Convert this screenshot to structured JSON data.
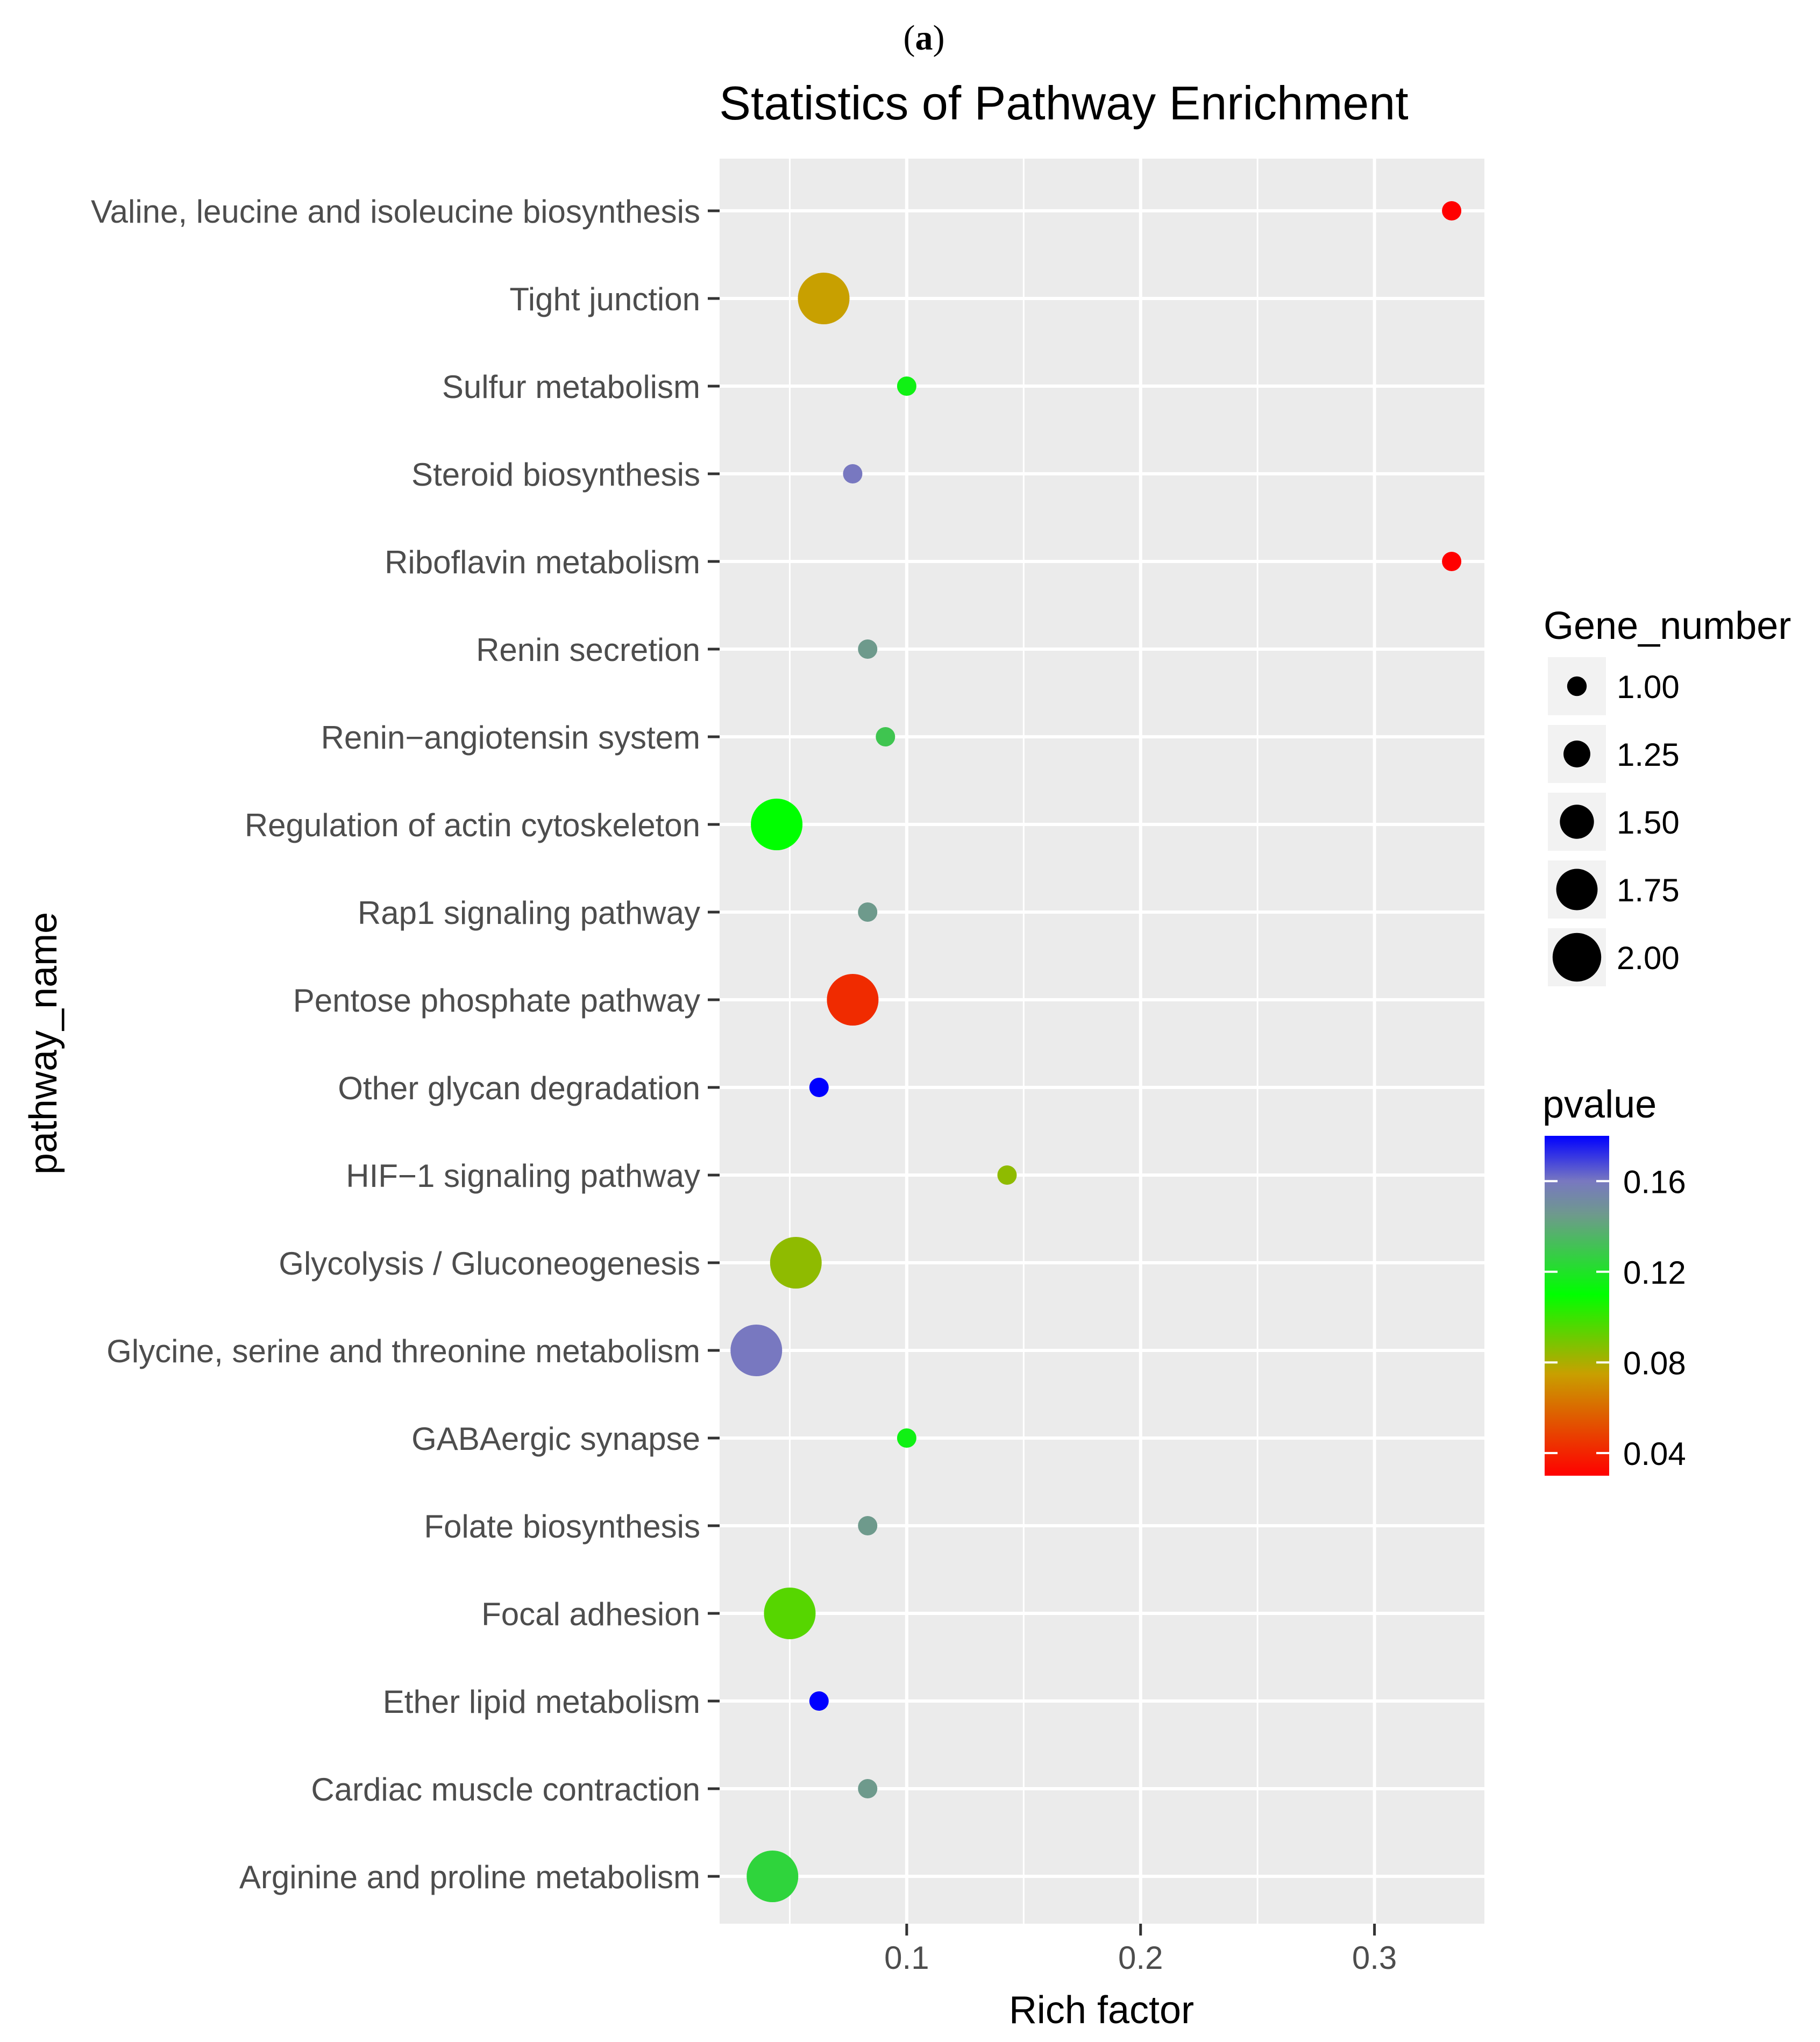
{
  "panel_label_open": "(",
  "panel_label_letter": "a",
  "panel_label_close": ")",
  "chart_data": {
    "type": "scatter",
    "title": "Statistics of Pathway Enrichment",
    "xlabel": "Rich factor",
    "ylabel": "pathway_name",
    "xlim": [
      0.02,
      0.347
    ],
    "x_ticks": [
      0.1,
      0.2,
      0.3
    ],
    "x_tick_labels": [
      "0.1",
      "0.2",
      "0.3"
    ],
    "grid": true,
    "panel_background": "#ebebeb",
    "grid_color": "#ffffff",
    "categories": [
      "Valine, leucine and isoleucine biosynthesis",
      "Tight junction",
      "Sulfur metabolism",
      "Steroid biosynthesis",
      "Riboflavin metabolism",
      "Renin secretion",
      "Renin−angiotensin system",
      "Regulation of actin cytoskeleton",
      "Rap1 signaling pathway",
      "Pentose phosphate pathway",
      "Other glycan degradation",
      "HIF−1 signaling pathway",
      "Glycolysis / Gluconeogenesis",
      "Glycine, serine and threonine metabolism",
      "GABAergic synapse",
      "Folate biosynthesis",
      "Focal adhesion",
      "Ether lipid metabolism",
      "Cardiac muscle contraction",
      "Arginine and proline metabolism"
    ],
    "points": [
      {
        "pathway": "Valine, leucine and isoleucine biosynthesis",
        "rich_factor": 0.333,
        "gene_number": 1,
        "pvalue": 0.03
      },
      {
        "pathway": "Tight junction",
        "rich_factor": 0.0645,
        "gene_number": 2,
        "pvalue": 0.075
      },
      {
        "pathway": "Sulfur metabolism",
        "rich_factor": 0.1,
        "gene_number": 1,
        "pvalue": 0.115
      },
      {
        "pathway": "Steroid biosynthesis",
        "rich_factor": 0.0769,
        "gene_number": 1,
        "pvalue": 0.16
      },
      {
        "pathway": "Riboflavin metabolism",
        "rich_factor": 0.333,
        "gene_number": 1,
        "pvalue": 0.03
      },
      {
        "pathway": "Renin secretion",
        "rich_factor": 0.0833,
        "gene_number": 1,
        "pvalue": 0.145
      },
      {
        "pathway": "Renin−angiotensin system",
        "rich_factor": 0.0909,
        "gene_number": 1,
        "pvalue": 0.13
      },
      {
        "pathway": "Regulation of actin cytoskeleton",
        "rich_factor": 0.0444,
        "gene_number": 2,
        "pvalue": 0.11
      },
      {
        "pathway": "Rap1 signaling pathway",
        "rich_factor": 0.0833,
        "gene_number": 1,
        "pvalue": 0.145
      },
      {
        "pathway": "Pentose phosphate pathway",
        "rich_factor": 0.0769,
        "gene_number": 2,
        "pvalue": 0.042
      },
      {
        "pathway": "Other glycan degradation",
        "rich_factor": 0.0625,
        "gene_number": 1,
        "pvalue": 0.18
      },
      {
        "pathway": "HIF−1 signaling pathway",
        "rich_factor": 0.1429,
        "gene_number": 1,
        "pvalue": 0.085
      },
      {
        "pathway": "Glycolysis / Gluconeogenesis",
        "rich_factor": 0.0526,
        "gene_number": 2,
        "pvalue": 0.085
      },
      {
        "pathway": "Glycine, serine and threonine metabolism",
        "rich_factor": 0.0357,
        "gene_number": 2,
        "pvalue": 0.16
      },
      {
        "pathway": "GABAergic synapse",
        "rich_factor": 0.1,
        "gene_number": 1,
        "pvalue": 0.115
      },
      {
        "pathway": "Folate biosynthesis",
        "rich_factor": 0.0833,
        "gene_number": 1,
        "pvalue": 0.145
      },
      {
        "pathway": "Focal adhesion",
        "rich_factor": 0.05,
        "gene_number": 2,
        "pvalue": 0.095
      },
      {
        "pathway": "Ether lipid metabolism",
        "rich_factor": 0.0625,
        "gene_number": 1,
        "pvalue": 0.18
      },
      {
        "pathway": "Cardiac muscle contraction",
        "rich_factor": 0.0833,
        "gene_number": 1,
        "pvalue": 0.145
      },
      {
        "pathway": "Arginine and proline metabolism",
        "rich_factor": 0.0426,
        "gene_number": 2,
        "pvalue": 0.125
      }
    ],
    "size_legend": {
      "title": "Gene_number",
      "breaks": [
        1.0,
        1.25,
        1.5,
        1.75,
        2.0
      ],
      "labels": [
        "1.00",
        "1.25",
        "1.50",
        "1.75",
        "2.00"
      ]
    },
    "color_legend": {
      "title": "pvalue",
      "range": [
        0.03,
        0.18
      ],
      "breaks": [
        0.16,
        0.12,
        0.08,
        0.04
      ],
      "labels": [
        "0.16",
        "0.12",
        "0.08",
        "0.04"
      ],
      "gradient": [
        {
          "value": 0.03,
          "color": "#ff0000"
        },
        {
          "value": 0.075,
          "color": "#c8a000"
        },
        {
          "value": 0.11,
          "color": "#00ff00"
        },
        {
          "value": 0.145,
          "color": "#6e9a8c"
        },
        {
          "value": 0.16,
          "color": "#7878c0"
        },
        {
          "value": 0.18,
          "color": "#0000ff"
        }
      ]
    }
  }
}
